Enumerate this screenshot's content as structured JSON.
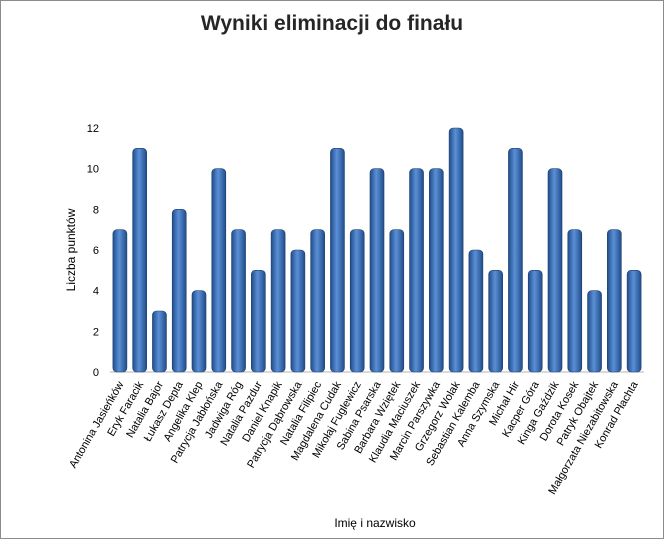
{
  "chart_data": {
    "type": "bar",
    "title": "Wyniki eliminacji do finału",
    "xlabel": "Imię i nazwisko",
    "ylabel": "Liczba punktów",
    "ylim": [
      0,
      12
    ],
    "yticks": [
      0,
      2,
      4,
      6,
      8,
      10,
      12
    ],
    "grid": false,
    "legend": "none",
    "bar_color": "#3d6fb5",
    "categories": [
      "Antonina Jasieńków",
      "Eryk Faracik",
      "Natalia Bajor",
      "Łukasz Depta",
      "Angelika Klep",
      "Patrycja Jabłońska",
      "Jadwiga Róg",
      "Natalia Pazdur",
      "Daniel Knapik",
      "Patrycja Dąbrowska",
      "Natalia Filipiec",
      "Magdalena Cudak",
      "Mikołaj Fuglewicz",
      "Sabina Psarska",
      "Barbara Wziętek",
      "Klaudia Maciuszek",
      "Marcin Parszywka",
      "Grzegorz Wolak",
      "Sebastian Kalemba",
      "Anna Szymska",
      "Michał Hir",
      "Kacper Góra",
      "Kinga Gaździk",
      "Dorota Kosek",
      "Patryk Obajtek",
      "Małgorzata Niezabitowska",
      "Konrad Płachta"
    ],
    "values": [
      7,
      11,
      3,
      8,
      4,
      10,
      7,
      5,
      7,
      6,
      7,
      11,
      7,
      10,
      7,
      10,
      10,
      12,
      6,
      5,
      11,
      5,
      10,
      7,
      4,
      7,
      5
    ]
  }
}
